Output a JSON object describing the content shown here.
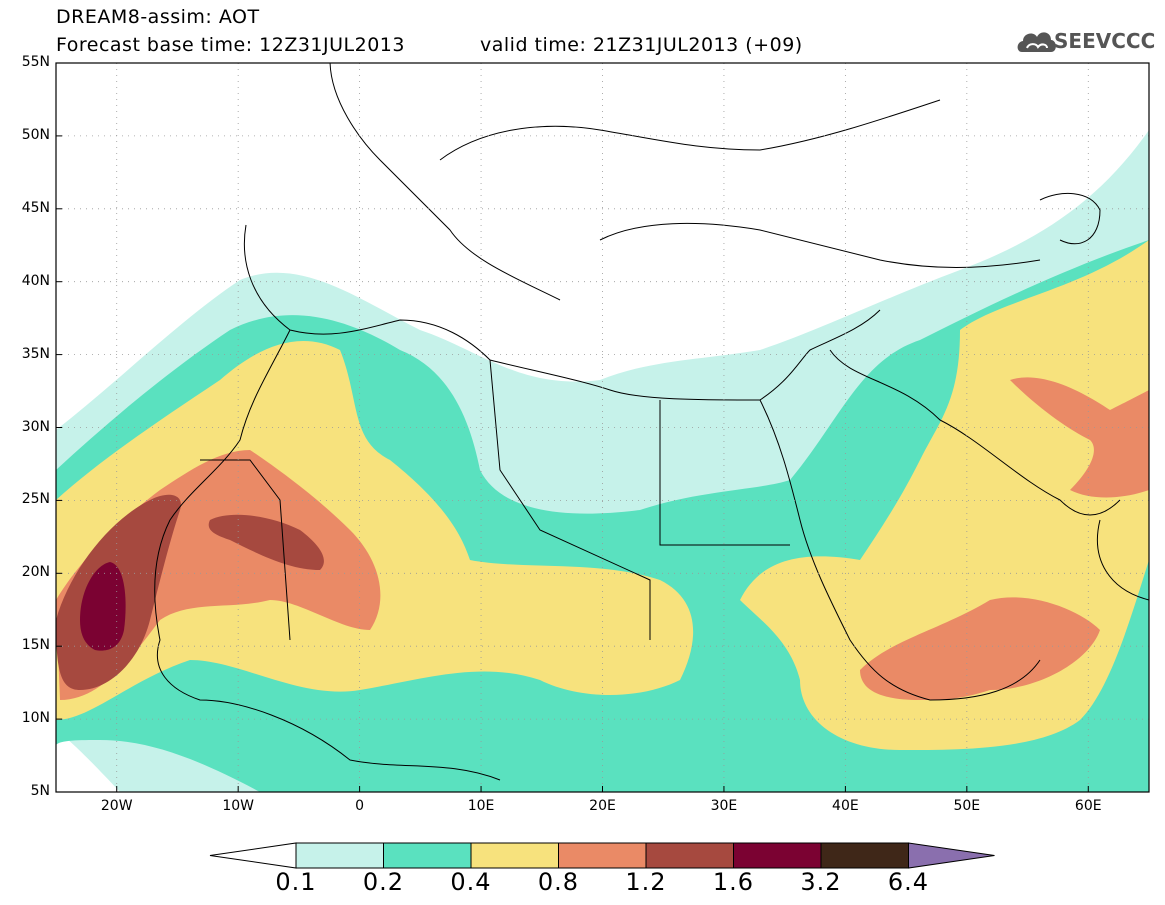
{
  "header": {
    "title": "DREAM8-assim: AOT",
    "base_time": "Forecast base time: 12Z31JUL2013",
    "valid_time": "valid time: 21Z31JUL2013 (+09)",
    "logo_text": "SEEVCCC",
    "logo_icon": "cloud-icon"
  },
  "map": {
    "lon_range": [
      -25,
      65
    ],
    "lat_range": [
      5,
      55
    ],
    "lat_labels": [
      "55N",
      "50N",
      "45N",
      "40N",
      "35N",
      "30N",
      "25N",
      "20N",
      "15N",
      "10N",
      "5N"
    ],
    "lat_values": [
      55,
      50,
      45,
      40,
      35,
      30,
      25,
      20,
      15,
      10,
      5
    ],
    "lon_labels": [
      "20W",
      "10W",
      "0",
      "10E",
      "20E",
      "30E",
      "40E",
      "50E",
      "60E"
    ],
    "lon_values": [
      -20,
      -10,
      0,
      10,
      20,
      30,
      40,
      50,
      60
    ],
    "gridlines": true
  },
  "legend": {
    "labels": [
      "0.1",
      "0.2",
      "0.4",
      "0.8",
      "1.2",
      "1.6",
      "3.2",
      "6.4"
    ],
    "colors": [
      "#ffffff",
      "#c6f2ea",
      "#5ae1bf",
      "#f7e27d",
      "#ea8a66",
      "#a6493f",
      "#7b0232",
      "#3f2718",
      "#8a6fae"
    ]
  }
}
